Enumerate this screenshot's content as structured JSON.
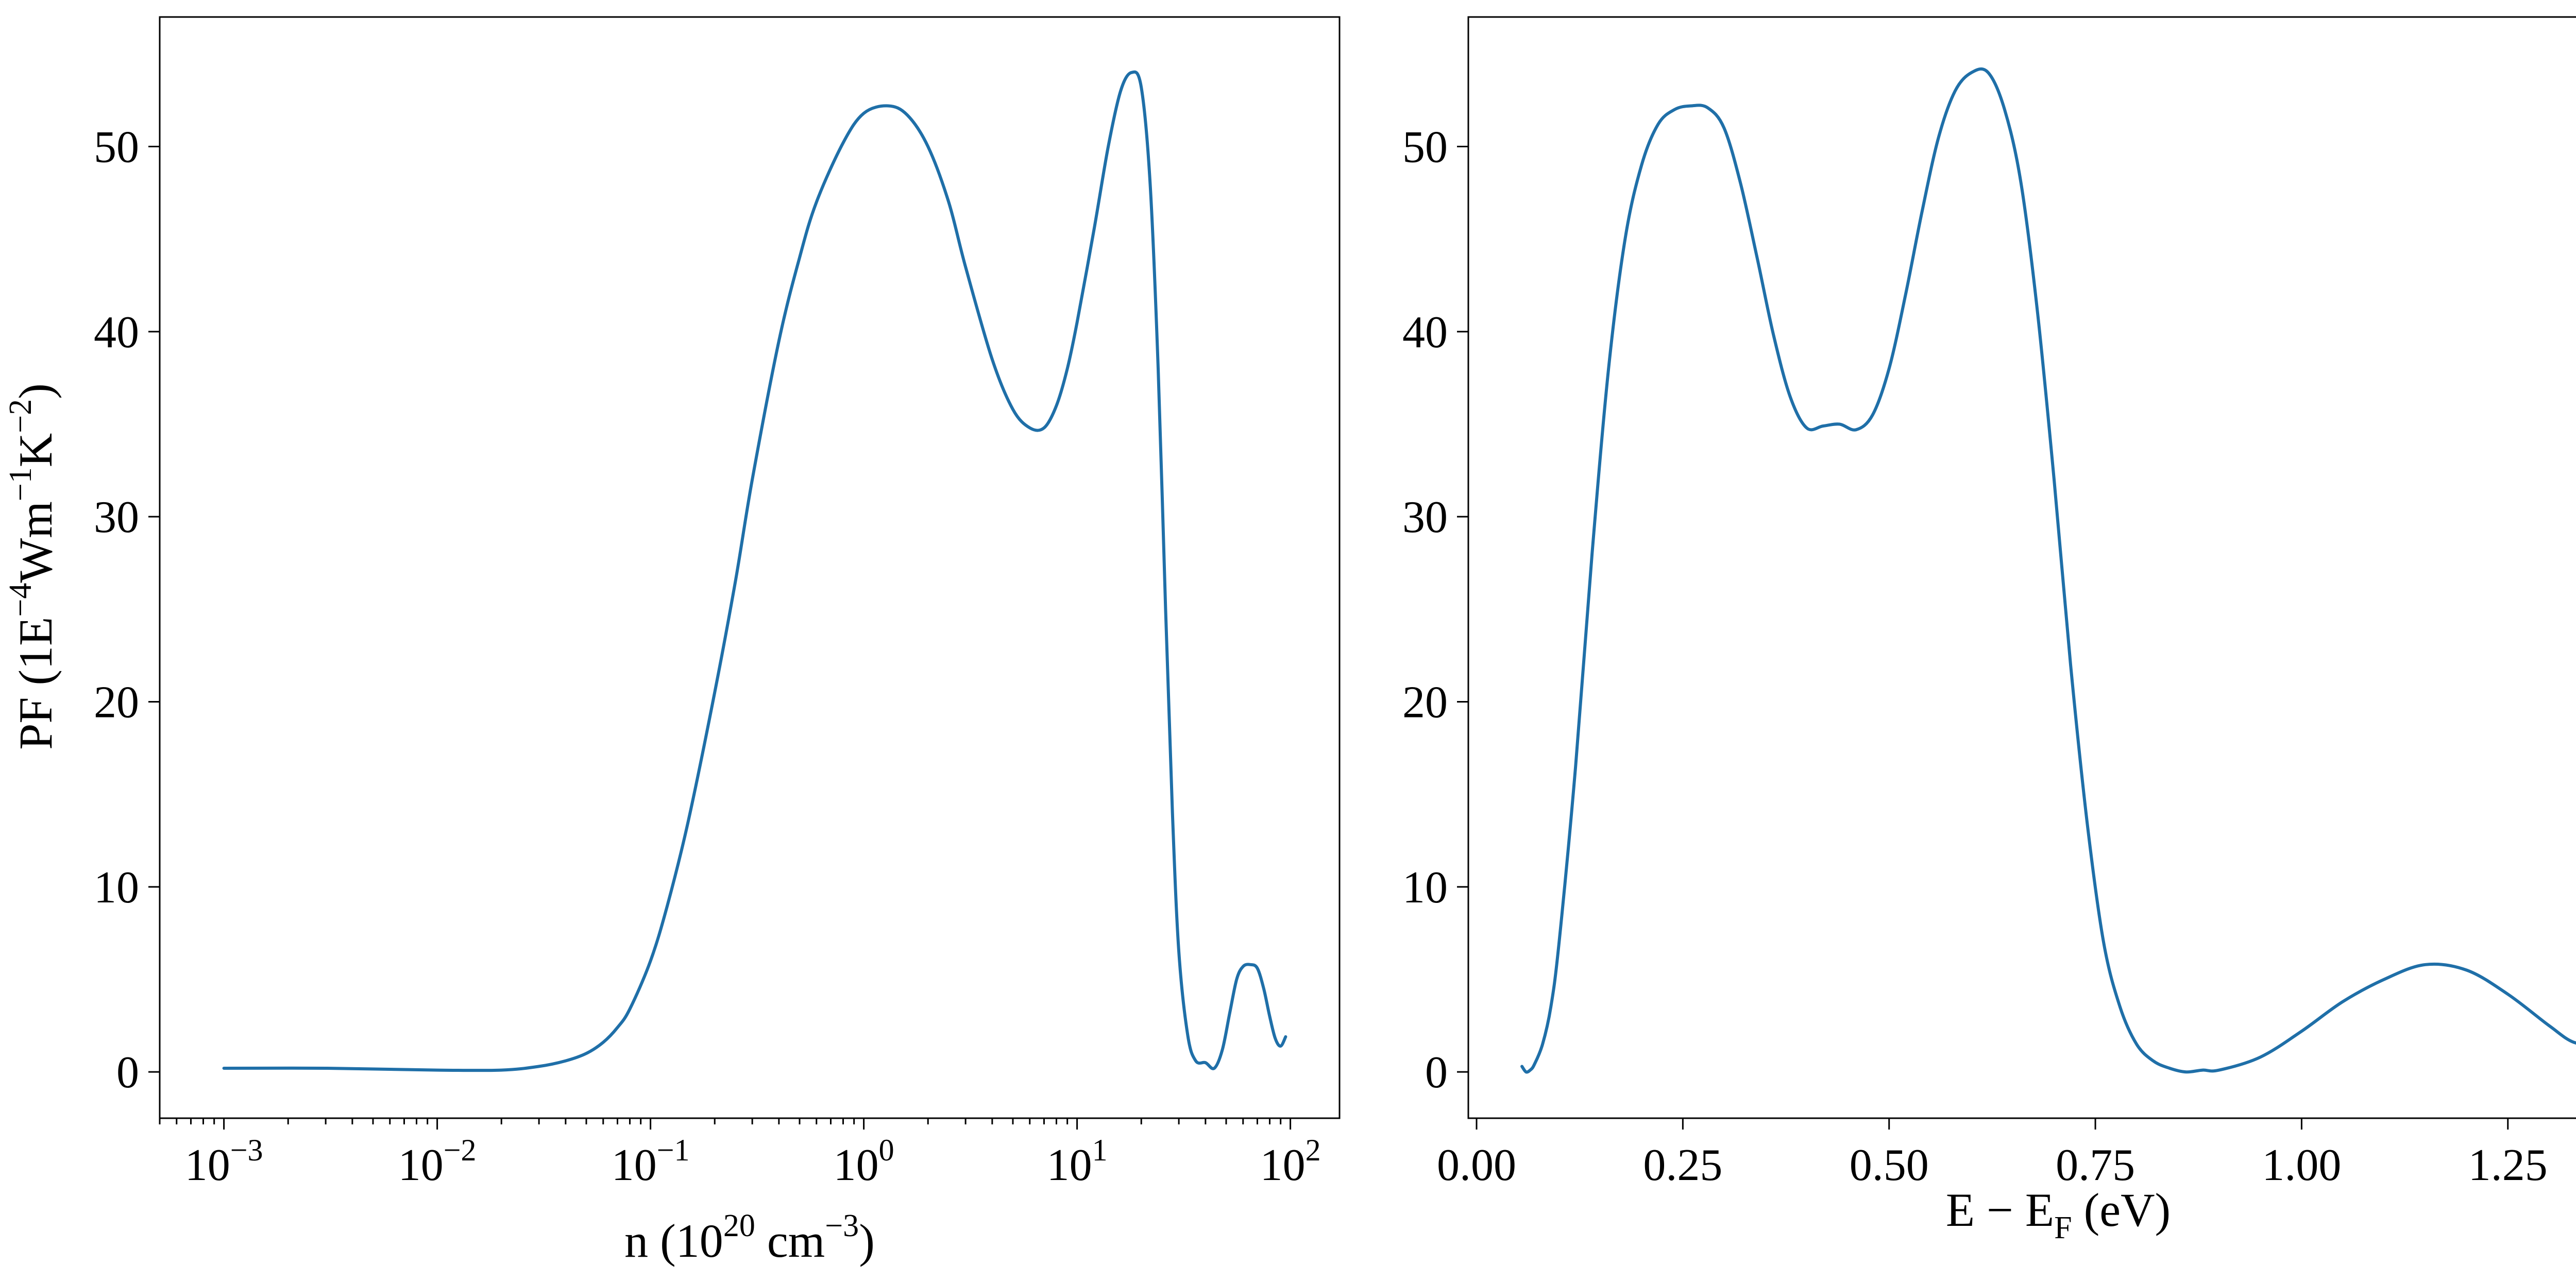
{
  "chart_data": [
    {
      "type": "line",
      "xscale": "log",
      "xlabel": "n (10^20 cm^-3)",
      "xlabel_parts": {
        "base": "n (10",
        "sup1": "20",
        "mid": " cm",
        "sup2": "−3",
        "end": ")"
      },
      "ylabel": "PF (1E^-4 Wm^-1 K^-2)",
      "ylabel_parts": {
        "a": "PF (1E",
        "s1": "−4",
        "b": "Wm",
        "s2": "−1",
        "c": "K",
        "s3": "−2",
        "d": ")"
      },
      "xlim": [
        0.0005,
        170
      ],
      "ylim": [
        -2.5,
        57
      ],
      "xtick_values": [
        0.001,
        0.01,
        0.1,
        1,
        10,
        100
      ],
      "xtick_labels": [
        {
          "base": "10",
          "exp": "−3"
        },
        {
          "base": "10",
          "exp": "−2"
        },
        {
          "base": "10",
          "exp": "−1"
        },
        {
          "base": "10",
          "exp": "0"
        },
        {
          "base": "10",
          "exp": "1"
        },
        {
          "base": "10",
          "exp": "2"
        }
      ],
      "ytick_values": [
        0,
        10,
        20,
        30,
        40,
        50
      ],
      "ytick_labels": [
        "0",
        "10",
        "20",
        "30",
        "40",
        "50"
      ],
      "color": "#1f6fa8",
      "x": [
        0.001,
        0.003,
        0.01,
        0.02,
        0.03,
        0.04,
        0.05,
        0.06,
        0.07,
        0.08,
        0.1,
        0.12,
        0.15,
        0.2,
        0.25,
        0.3,
        0.4,
        0.5,
        0.6,
        0.8,
        1.0,
        1.3,
        1.6,
        2.0,
        2.5,
        3.0,
        4.0,
        5.0,
        6.0,
        7.0,
        8.0,
        9.0,
        10.0,
        12.0,
        14.0,
        16.0,
        18.0,
        20.0,
        22.0,
        24.0,
        26.0,
        28.0,
        30.0,
        33.0,
        36.0,
        40.0,
        44.0,
        48.0,
        52.0,
        56.0,
        60.0,
        65.0,
        70.0,
        75.0,
        80.0,
        85.0,
        90.0,
        95.0
      ],
      "y": [
        0.2,
        0.2,
        0.1,
        0.1,
        0.3,
        0.6,
        1.0,
        1.6,
        2.4,
        3.4,
        6.0,
        9.0,
        13.5,
        20.5,
        26.5,
        32.0,
        39.5,
        44.0,
        47.0,
        50.2,
        51.8,
        52.2,
        51.7,
        50.0,
        47.0,
        43.5,
        38.5,
        35.8,
        34.8,
        34.8,
        36.0,
        38.0,
        40.5,
        45.5,
        50.0,
        53.0,
        54.0,
        53.2,
        48.0,
        38.0,
        25.0,
        14.0,
        6.5,
        2.0,
        0.6,
        0.5,
        0.2,
        1.2,
        3.2,
        5.0,
        5.7,
        5.8,
        5.6,
        4.5,
        3.0,
        1.8,
        1.4,
        1.9
      ]
    },
    {
      "type": "line",
      "xscale": "linear",
      "xlabel": "E − E_F (eV)",
      "xlabel_parts": {
        "base": "E − E",
        "sub": "F",
        "end": " (eV)"
      },
      "ylabel": "",
      "xlim": [
        -0.01,
        1.42
      ],
      "ylim": [
        -2.5,
        57
      ],
      "xtick_values": [
        0.0,
        0.25,
        0.5,
        0.75,
        1.0,
        1.25
      ],
      "xtick_labels": [
        "0.00",
        "0.25",
        "0.50",
        "0.75",
        "1.00",
        "1.25"
      ],
      "ytick_values": [
        0,
        10,
        20,
        30,
        40,
        50
      ],
      "ytick_labels": [
        "0",
        "10",
        "20",
        "30",
        "40",
        "50"
      ],
      "color": "#1f6fa8",
      "x": [
        0.055,
        0.06,
        0.065,
        0.07,
        0.08,
        0.09,
        0.1,
        0.12,
        0.14,
        0.16,
        0.18,
        0.2,
        0.22,
        0.24,
        0.26,
        0.28,
        0.3,
        0.32,
        0.34,
        0.36,
        0.38,
        0.4,
        0.42,
        0.44,
        0.46,
        0.48,
        0.5,
        0.52,
        0.54,
        0.56,
        0.58,
        0.6,
        0.62,
        0.64,
        0.66,
        0.68,
        0.7,
        0.72,
        0.74,
        0.76,
        0.78,
        0.8,
        0.82,
        0.84,
        0.86,
        0.88,
        0.9,
        0.95,
        1.0,
        1.05,
        1.1,
        1.15,
        1.2,
        1.25,
        1.3,
        1.33,
        1.36,
        1.37
      ],
      "y": [
        0.3,
        0.0,
        0.1,
        0.4,
        1.5,
        3.5,
        7.0,
        16.5,
        28.0,
        38.0,
        45.0,
        49.0,
        51.2,
        52.0,
        52.2,
        52.1,
        51.0,
        48.0,
        44.0,
        39.8,
        36.5,
        34.8,
        34.9,
        35.0,
        34.7,
        35.5,
        38.0,
        42.0,
        46.5,
        50.5,
        53.0,
        54.0,
        54.0,
        52.0,
        48.0,
        41.0,
        32.0,
        22.0,
        13.5,
        7.0,
        3.5,
        1.5,
        0.6,
        0.2,
        0.0,
        0.1,
        0.1,
        0.8,
        2.2,
        3.8,
        5.0,
        5.8,
        5.5,
        4.2,
        2.5,
        1.6,
        1.5,
        1.7
      ]
    }
  ]
}
